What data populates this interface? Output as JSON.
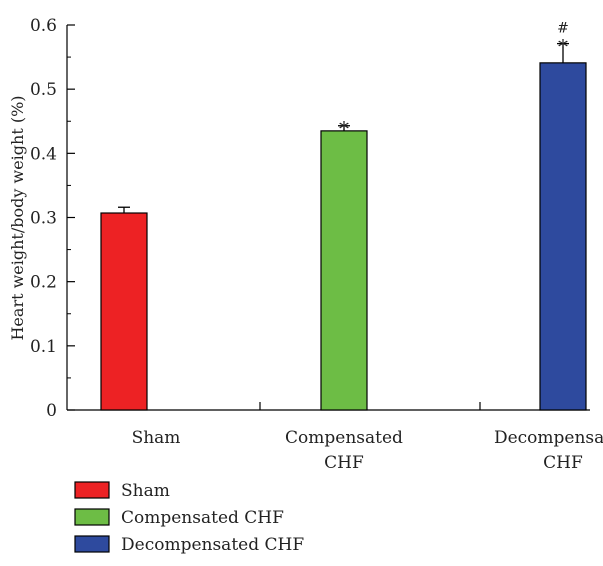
{
  "chart_data": {
    "type": "bar",
    "ylabel": "Heart weight/body weight (%)",
    "xlabel": "",
    "ylim": [
      0,
      0.6
    ],
    "y_ticks": [
      "0",
      "0.1",
      "0.2",
      "0.3",
      "0.4",
      "0.5",
      "0.6"
    ],
    "categories": [
      {
        "line1": "Sham",
        "line2": ""
      },
      {
        "line1": "Compensated",
        "line2": "CHF"
      },
      {
        "line1": "Decompensated",
        "line2": "CHF"
      }
    ],
    "values": [
      0.307,
      0.435,
      0.541
    ],
    "errors": [
      0.009,
      0.008,
      0.03
    ],
    "colors": [
      "#ed2224",
      "#6dbd45",
      "#2e4a9e"
    ],
    "significance": [
      [],
      [
        "*"
      ],
      [
        "*",
        "#"
      ]
    ],
    "legend": {
      "placement": "bottom-left",
      "items": [
        "Sham",
        "Compensated CHF",
        "Decompensated CHF"
      ]
    }
  }
}
